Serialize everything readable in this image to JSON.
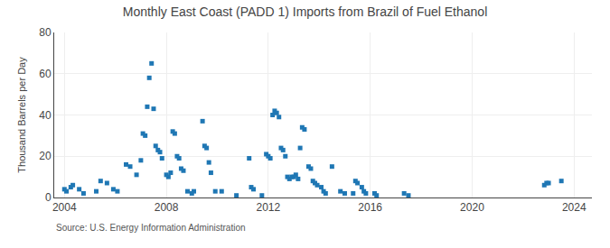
{
  "chart_data": {
    "type": "scatter",
    "title": "Monthly East Coast (PADD 1) Imports from Brazil of Fuel Ethanol",
    "ylabel": "Thousand Barrels per Day",
    "annotations": [
      {
        "text": "Source: U.S. Energy Information Administration"
      }
    ],
    "marker": "square",
    "grid": true,
    "xlim": [
      2003.6,
      2024.7
    ],
    "xticks": [
      2004,
      2008,
      2012,
      2016,
      2020,
      2024
    ],
    "ylim": [
      0,
      80
    ],
    "yticks": [
      0,
      20,
      40,
      60,
      80
    ],
    "x": [
      2004.0,
      2004.08,
      2004.25,
      2004.33,
      2004.58,
      2004.75,
      2005.25,
      2005.42,
      2005.67,
      2005.92,
      2006.08,
      2006.42,
      2006.58,
      2006.83,
      2007.0,
      2007.08,
      2007.17,
      2007.25,
      2007.33,
      2007.42,
      2007.5,
      2007.58,
      2007.67,
      2007.75,
      2007.83,
      2008.0,
      2008.08,
      2008.17,
      2008.25,
      2008.33,
      2008.42,
      2008.5,
      2008.58,
      2008.67,
      2008.83,
      2009.0,
      2009.08,
      2009.42,
      2009.5,
      2009.58,
      2009.67,
      2009.75,
      2009.92,
      2010.17,
      2010.75,
      2011.25,
      2011.33,
      2011.42,
      2011.75,
      2011.92,
      2012.0,
      2012.08,
      2012.17,
      2012.25,
      2012.33,
      2012.42,
      2012.5,
      2012.58,
      2012.67,
      2012.75,
      2012.83,
      2012.92,
      2013.0,
      2013.08,
      2013.17,
      2013.25,
      2013.33,
      2013.42,
      2013.58,
      2013.67,
      2013.75,
      2013.83,
      2013.92,
      2014.08,
      2014.17,
      2014.25,
      2014.5,
      2014.83,
      2015.0,
      2015.33,
      2015.42,
      2015.5,
      2015.67,
      2015.75,
      2015.83,
      2016.17,
      2016.25,
      2017.33,
      2017.5,
      2022.83,
      2022.92,
      2023.0,
      2023.5
    ],
    "values": [
      4,
      3,
      5,
      6,
      4,
      2,
      3,
      8,
      7,
      4,
      3,
      16,
      15,
      11,
      18,
      31,
      30,
      44,
      58,
      65,
      43,
      25,
      23,
      22,
      19,
      11,
      10,
      12,
      32,
      31,
      20,
      19,
      14,
      13,
      3,
      2,
      3,
      37,
      25,
      24,
      17,
      12,
      3,
      3,
      1,
      19,
      5,
      4,
      1,
      21,
      20,
      19,
      40,
      42,
      41,
      39,
      24,
      23,
      20,
      10,
      9,
      10,
      10,
      11,
      9,
      24,
      34,
      33,
      15,
      14,
      8,
      7,
      6,
      5,
      3,
      2,
      15,
      3,
      2,
      2,
      8,
      7,
      5,
      3,
      2,
      2,
      1,
      2,
      1,
      6,
      7,
      7,
      8
    ]
  }
}
